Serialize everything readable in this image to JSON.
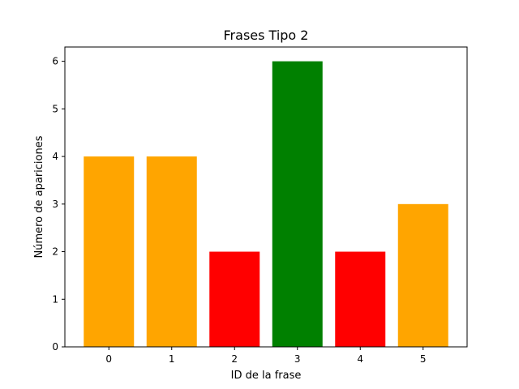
{
  "chart_data": {
    "type": "bar",
    "title": "Frases Tipo 2",
    "xlabel": "ID de la frase",
    "ylabel": "Número de apariciones",
    "categories": [
      "0",
      "1",
      "2",
      "3",
      "4",
      "5"
    ],
    "values": [
      4,
      4,
      2,
      6,
      2,
      3
    ],
    "bar_colors": [
      "#FFA500",
      "#FFA500",
      "#FF0000",
      "#008000",
      "#FF0000",
      "#FFA500"
    ],
    "ylim": [
      0,
      6.3
    ],
    "yticks": [
      0,
      1,
      2,
      3,
      4,
      5,
      6
    ],
    "grid": false,
    "legend": "none"
  }
}
